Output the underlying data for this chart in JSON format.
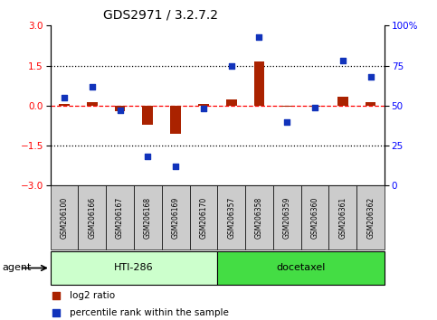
{
  "title": "GDS2971 / 3.2.7.2",
  "samples": [
    "GSM206100",
    "GSM206166",
    "GSM206167",
    "GSM206168",
    "GSM206169",
    "GSM206170",
    "GSM206357",
    "GSM206358",
    "GSM206359",
    "GSM206360",
    "GSM206361",
    "GSM206362"
  ],
  "log2_ratio": [
    0.05,
    0.12,
    -0.22,
    -0.72,
    -1.05,
    0.05,
    0.22,
    1.65,
    -0.05,
    -0.05,
    0.32,
    0.12
  ],
  "percentile_rank": [
    55,
    62,
    47,
    18,
    12,
    48,
    75,
    93,
    40,
    49,
    78,
    68
  ],
  "group_labels": [
    "HTI-286",
    "docetaxel"
  ],
  "group_ranges": [
    [
      0,
      5
    ],
    [
      6,
      11
    ]
  ],
  "group_colors": [
    "#ccffcc",
    "#44dd44"
  ],
  "bar_color": "#aa2200",
  "dot_color": "#1133bb",
  "ylim_left": [
    -3,
    3
  ],
  "ylim_right": [
    0,
    100
  ],
  "yticks_left": [
    -3,
    -1.5,
    0,
    1.5,
    3
  ],
  "yticks_right": [
    0,
    25,
    50,
    75,
    100
  ],
  "legend_labels": [
    "log2 ratio",
    "percentile rank within the sample"
  ],
  "legend_colors": [
    "#aa2200",
    "#1133bb"
  ],
  "sample_bg": "#cccccc",
  "hline_y": [
    0.0,
    1.5,
    -1.5
  ],
  "hline_styles": [
    "--",
    ":",
    ":"
  ],
  "hline_colors": [
    "red",
    "black",
    "black"
  ]
}
